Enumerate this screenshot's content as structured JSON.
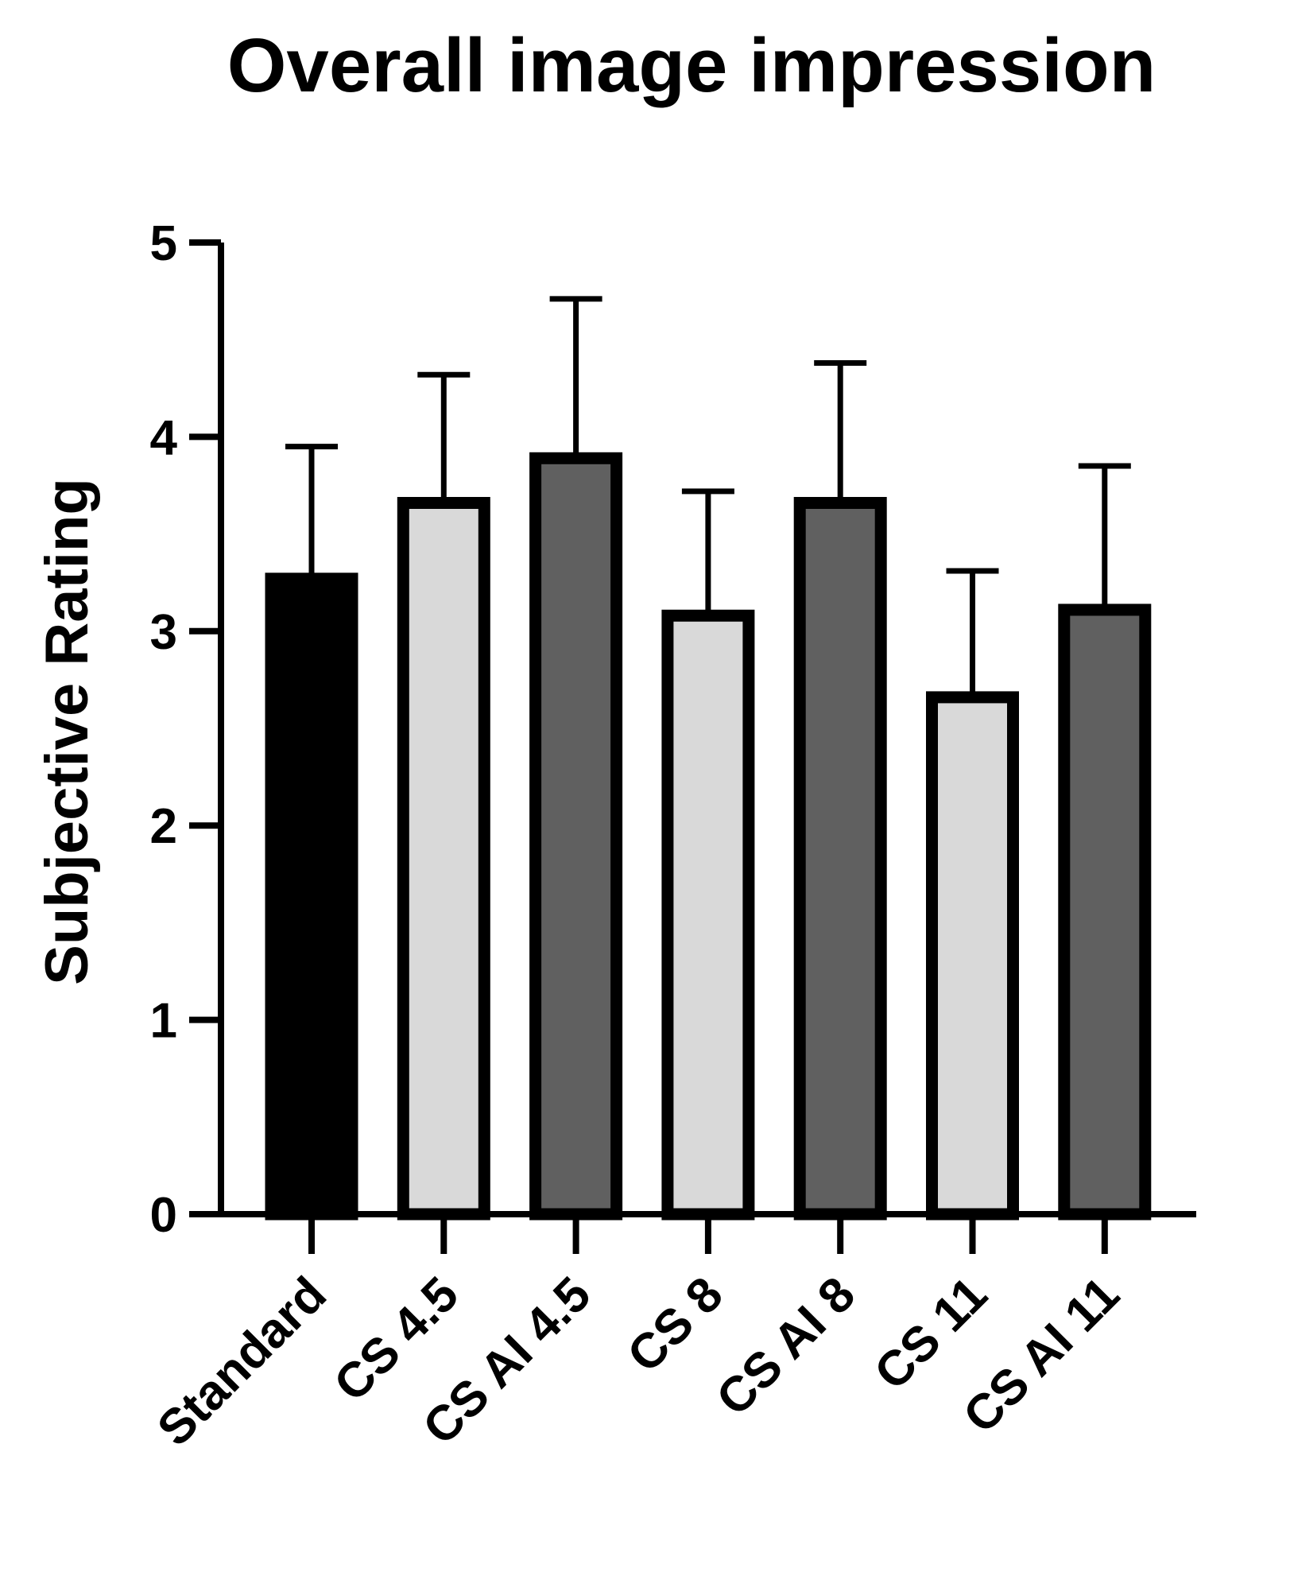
{
  "chart_data": {
    "type": "bar",
    "title": "Overall image impression",
    "xlabel": "",
    "ylabel": "Subjective  Rating",
    "ylim": [
      0,
      5
    ],
    "yticks": [
      "0",
      "1",
      "2",
      "3",
      "4",
      "5"
    ],
    "categories": [
      "Standard",
      "CS 4.5",
      "CS AI 4.5",
      "CS 8",
      "CS AI 8",
      "CS 11",
      "CS AI 11"
    ],
    "values": [
      3.27,
      3.66,
      3.89,
      3.08,
      3.66,
      2.66,
      3.11
    ],
    "error_upper": [
      0.68,
      0.66,
      0.82,
      0.64,
      0.72,
      0.65,
      0.74
    ],
    "bar_colors": [
      "#000000",
      "#d9d9d9",
      "#606060",
      "#d9d9d9",
      "#606060",
      "#d9d9d9",
      "#606060"
    ],
    "edge_color": "#000000",
    "grid": false,
    "legend": "none"
  }
}
